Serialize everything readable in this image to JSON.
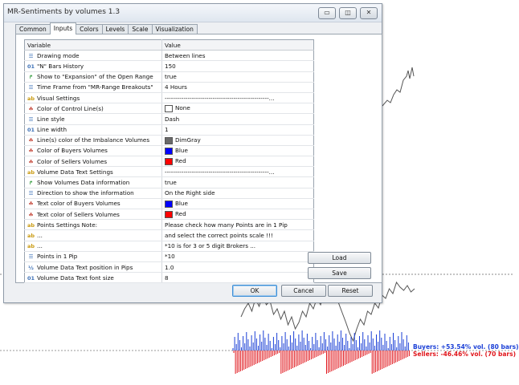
{
  "window": {
    "title": "MR-Sentiments by volumes 1.3"
  },
  "tabs": [
    {
      "label": "Common"
    },
    {
      "label": "Inputs",
      "active": true
    },
    {
      "label": "Colors"
    },
    {
      "label": "Levels"
    },
    {
      "label": "Scale"
    },
    {
      "label": "Visualization"
    }
  ],
  "table": {
    "headers": {
      "variable": "Variable",
      "value": "Value"
    },
    "rows": [
      {
        "icon": "enum-icon",
        "variable": "Drawing mode",
        "value": "Between lines"
      },
      {
        "icon": "int-icon",
        "variable": "\"N\" Bars History",
        "value": "150"
      },
      {
        "icon": "bool-icon",
        "variable": "Show to \"Expansion\" of the Open Range",
        "value": "true"
      },
      {
        "icon": "enum-icon",
        "variable": "Time Frame from \"MR-Range Breakouts\"",
        "value": "4 Hours"
      },
      {
        "icon": "string-icon",
        "variable": "Visual Settings",
        "value": "--------------------------------------------------..."
      },
      {
        "icon": "color-icon",
        "variable": "Color of Control Line(s)",
        "value": "None",
        "swatch": "#ffffff"
      },
      {
        "icon": "enum-icon",
        "variable": "Line style",
        "value": "Dash"
      },
      {
        "icon": "int-icon",
        "variable": "Line width",
        "value": "1"
      },
      {
        "icon": "color-icon",
        "variable": "Line(s) color of the Imbalance Volumes",
        "value": "DimGray",
        "swatch": "#696969"
      },
      {
        "icon": "color-icon",
        "variable": "Color of Buyers Volumes",
        "value": "Blue",
        "swatch": "#0000ff"
      },
      {
        "icon": "color-icon",
        "variable": "Color of Sellers Volumes",
        "value": "Red",
        "swatch": "#ff0000"
      },
      {
        "icon": "string-icon",
        "variable": "Volume Data Text Settings",
        "value": "--------------------------------------------------..."
      },
      {
        "icon": "bool-icon",
        "variable": "Show Volumes Data information",
        "value": "true"
      },
      {
        "icon": "enum-icon",
        "variable": "Direction to show the information",
        "value": "On the Right side"
      },
      {
        "icon": "color-icon",
        "variable": "Text color of Buyers Volumes",
        "value": "Blue",
        "swatch": "#0000ff"
      },
      {
        "icon": "color-icon",
        "variable": "Text color of Sellers Volumes",
        "value": "Red",
        "swatch": "#ff0000"
      },
      {
        "icon": "string-icon",
        "variable": "Points Settings Note:",
        "value": "Please check how many Points are in 1 Pip"
      },
      {
        "icon": "string-icon",
        "variable": "...",
        "value": "and select the correct points scale !!!"
      },
      {
        "icon": "string-icon",
        "variable": "...",
        "value": "*10 is for 3 or 5 digit Brokers ..."
      },
      {
        "icon": "enum-icon",
        "variable": "Points in 1 Pip",
        "value": "*10"
      },
      {
        "icon": "double-icon",
        "variable": "Volume Data Text position in Pips",
        "value": "1.0"
      },
      {
        "icon": "int-icon",
        "variable": "Volume Data Text font size",
        "value": "8"
      }
    ]
  },
  "icons": {
    "enum-icon": {
      "glyph": "☰",
      "color": "#3b6fb6"
    },
    "int-icon": {
      "glyph": "01",
      "color": "#3b6fb6"
    },
    "bool-icon": {
      "glyph": "↱",
      "color": "#2f9a3a"
    },
    "string-icon": {
      "glyph": "ab",
      "color": "#c99a10"
    },
    "color-icon": {
      "glyph": "☘",
      "color": "#c0392b"
    },
    "double-icon": {
      "glyph": "½",
      "color": "#3b6fb6"
    }
  },
  "buttons": {
    "load": "Load",
    "save": "Save",
    "ok": "OK",
    "cancel": "Cancel",
    "reset": "Reset"
  },
  "chart_legend": {
    "buyers": "Buyers: +53.54% vol. (80 bars)",
    "sellers": "Sellers: -46.46% vol. (70 bars)",
    "buyers_color": "#1a3fd6",
    "sellers_color": "#e0151b"
  }
}
